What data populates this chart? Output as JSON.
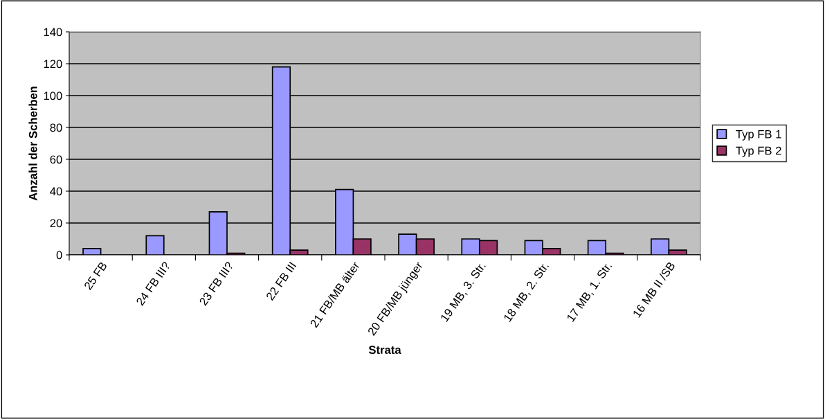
{
  "chart_data": {
    "type": "bar",
    "xlabel": "Strata",
    "ylabel": "Anzahl der Scherben",
    "categories": [
      "25 FB",
      "24 FB III?",
      "23 FB III?",
      "22 FB III",
      "21 FB/MB älter",
      "20 FB/MB jünger",
      "19 MB, 3. Str.",
      "18 MB, 2. Str.",
      "17 MB, 1. Str.",
      "16 MB II /SB"
    ],
    "series": [
      {
        "name": "Typ FB 1",
        "color": "#9999ff",
        "values": [
          4,
          12,
          27,
          118,
          41,
          13,
          10,
          9,
          9,
          10
        ]
      },
      {
        "name": "Typ FB 2",
        "color": "#993366",
        "values": [
          null,
          null,
          1,
          3,
          10,
          10,
          9,
          4,
          1,
          3
        ]
      }
    ],
    "ylim": [
      0,
      140
    ],
    "yticks": [
      0,
      20,
      40,
      60,
      80,
      100,
      120,
      140
    ],
    "grid": "y",
    "legend": "right"
  }
}
